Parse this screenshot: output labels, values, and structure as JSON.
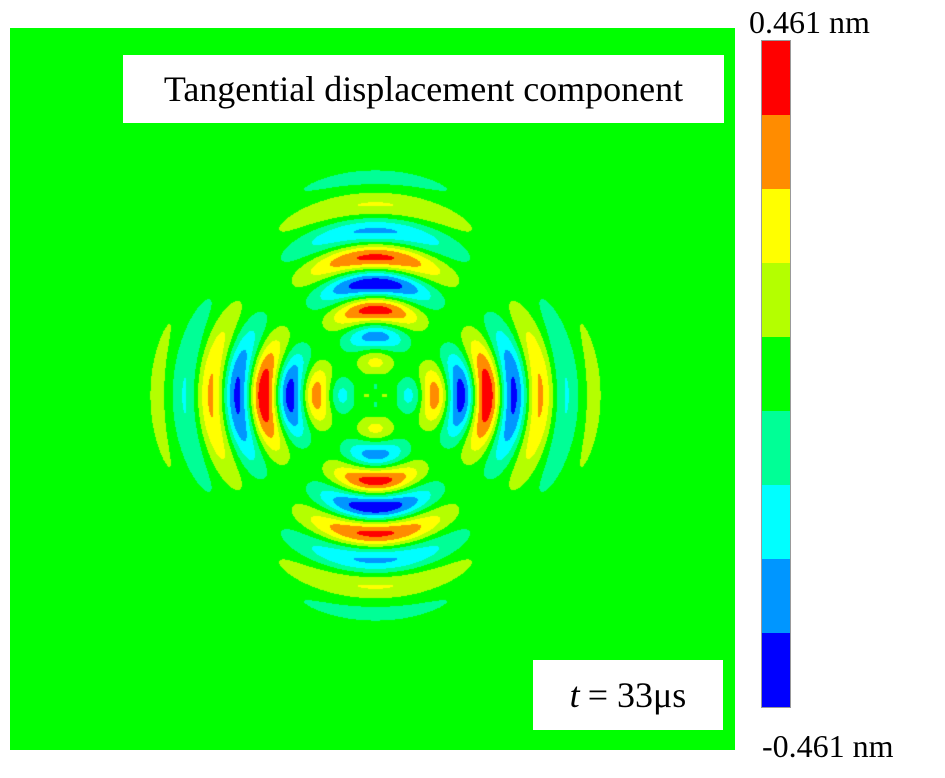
{
  "chart_data": {
    "type": "heatmap",
    "title": "Tangential displacement component",
    "annotation": {
      "variable": "t",
      "value": "= 33μs"
    },
    "colorbar": {
      "max_label": "0.461 nm",
      "min_label": "-0.461 nm",
      "range": [
        -0.461,
        0.461
      ],
      "unit": "nm",
      "levels_top_to_bottom": [
        "#ff0000",
        "#ff8c00",
        "#ffff00",
        "#b4ff00",
        "#00ff00",
        "#00ff96",
        "#00ffff",
        "#0096ff",
        "#0000ff"
      ]
    },
    "background_color": "#00ff00",
    "pattern": "four-lobed concentric wave fronts, lobes along horizontal and vertical axes"
  }
}
